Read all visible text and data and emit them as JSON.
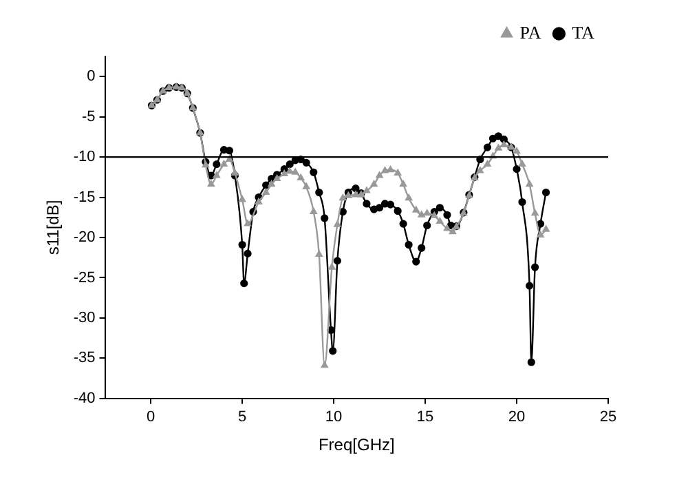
{
  "chart_data": {
    "type": "line",
    "xlabel": "Freq[GHz]",
    "ylabel": "s11[dB]",
    "xlim": [
      -2.5,
      25
    ],
    "xticks": [
      0,
      5,
      10,
      15,
      20,
      25
    ],
    "ylim": [
      -40,
      2.5
    ],
    "yticks": [
      -40,
      -35,
      -30,
      -25,
      -20,
      -15,
      -10,
      -5,
      0
    ],
    "grid": false,
    "legend": "top right",
    "ref_lines": [
      {
        "axis": "y",
        "value": -10,
        "color": "#000000"
      }
    ],
    "series": [
      {
        "name": "PA",
        "color": "#999999",
        "marker": "triangle",
        "x": [
          0.05,
          0.35,
          0.67,
          1,
          1.4,
          1.7,
          2,
          2.3,
          2.7,
          3,
          3.3,
          3.6,
          4,
          4.3,
          4.6,
          5,
          5.3,
          5.9,
          6.3,
          6.6,
          6.9,
          7.3,
          7.6,
          7.9,
          8.2,
          8.5,
          8.9,
          9.2,
          9.5,
          9.9,
          10.2,
          10.5,
          10.8,
          11.2,
          11.5,
          11.8,
          12.2,
          12.5,
          12.8,
          13.1,
          13.5,
          13.8,
          14.1,
          14.5,
          14.8,
          15.1,
          15.5,
          15.8,
          16.2,
          16.5,
          16.7,
          17.1,
          17.4,
          17.7,
          18,
          18.4,
          18.7,
          19,
          19.3,
          19.7,
          20,
          20.3,
          20.7,
          21,
          21.3,
          21.6
        ],
        "values": [
          -3.6,
          -2.9,
          -1.8,
          -1.4,
          -1.3,
          -1.4,
          -2.1,
          -3.9,
          -7,
          -11,
          -13.4,
          -12.3,
          -10.9,
          -10.3,
          -12,
          -15.3,
          -18.3,
          -15.6,
          -14.4,
          -13.4,
          -12.7,
          -12.1,
          -11.8,
          -11.9,
          -12.6,
          -13.7,
          -16.8,
          -22.1,
          -35.9,
          -23.7,
          -18.4,
          -15.1,
          -14.8,
          -14.7,
          -14.7,
          -14.2,
          -13.4,
          -12.3,
          -11.7,
          -11.6,
          -12,
          -13.4,
          -15.1,
          -16.6,
          -17.2,
          -17,
          -17.3,
          -18,
          -18.9,
          -19.3,
          -18.7,
          -17,
          -14.8,
          -12.6,
          -11.7,
          -10.9,
          -9.9,
          -8.9,
          -8.5,
          -8.8,
          -9.3,
          -10.9,
          -13.4,
          -17,
          -19.7,
          -19
        ]
      },
      {
        "name": "TA",
        "color": "#000000",
        "marker": "circle",
        "x": [
          0.05,
          0.35,
          0.67,
          1,
          1.4,
          1.7,
          2,
          2.3,
          2.7,
          3,
          3.3,
          3.6,
          4,
          4.3,
          4.6,
          5,
          5.1,
          5.3,
          5.6,
          5.9,
          6.3,
          6.6,
          6.9,
          7.3,
          7.6,
          7.9,
          8.2,
          8.5,
          8.9,
          9.2,
          9.5,
          9.85,
          9.95,
          10.2,
          10.5,
          10.8,
          11.2,
          11.5,
          11.8,
          12.2,
          12.5,
          12.8,
          13.1,
          13.5,
          13.8,
          14.1,
          14.5,
          14.8,
          15.1,
          15.5,
          15.8,
          16.2,
          16.4,
          16.7,
          17.1,
          17.4,
          17.7,
          18,
          18.4,
          18.7,
          19,
          19.3,
          19.7,
          20,
          20.3,
          20.7,
          20.8,
          21,
          21.3,
          21.6
        ],
        "values": [
          -3.6,
          -2.9,
          -1.8,
          -1.4,
          -1.3,
          -1.4,
          -2.1,
          -3.9,
          -7,
          -10.6,
          -12.3,
          -10.9,
          -9.1,
          -9.2,
          -12.3,
          -20.9,
          -25.7,
          -22,
          -16.8,
          -15,
          -13.5,
          -12.7,
          -12.2,
          -11.5,
          -10.9,
          -10.4,
          -10.3,
          -10.7,
          -11.9,
          -14.4,
          -17.6,
          -31.5,
          -34.1,
          -22.9,
          -16.8,
          -14.4,
          -13.9,
          -14.5,
          -15.8,
          -16.5,
          -16.3,
          -15.8,
          -15.9,
          -16.7,
          -18.3,
          -20.9,
          -23,
          -21.3,
          -18.5,
          -16.8,
          -16.3,
          -17.2,
          -18.5,
          -18.6,
          -16.9,
          -14.7,
          -12.5,
          -10.3,
          -8.8,
          -7.7,
          -7.4,
          -7.8,
          -8.8,
          -11.5,
          -15.6,
          -26,
          -35.5,
          -23.7,
          -18.3,
          -14.4
        ]
      }
    ]
  }
}
